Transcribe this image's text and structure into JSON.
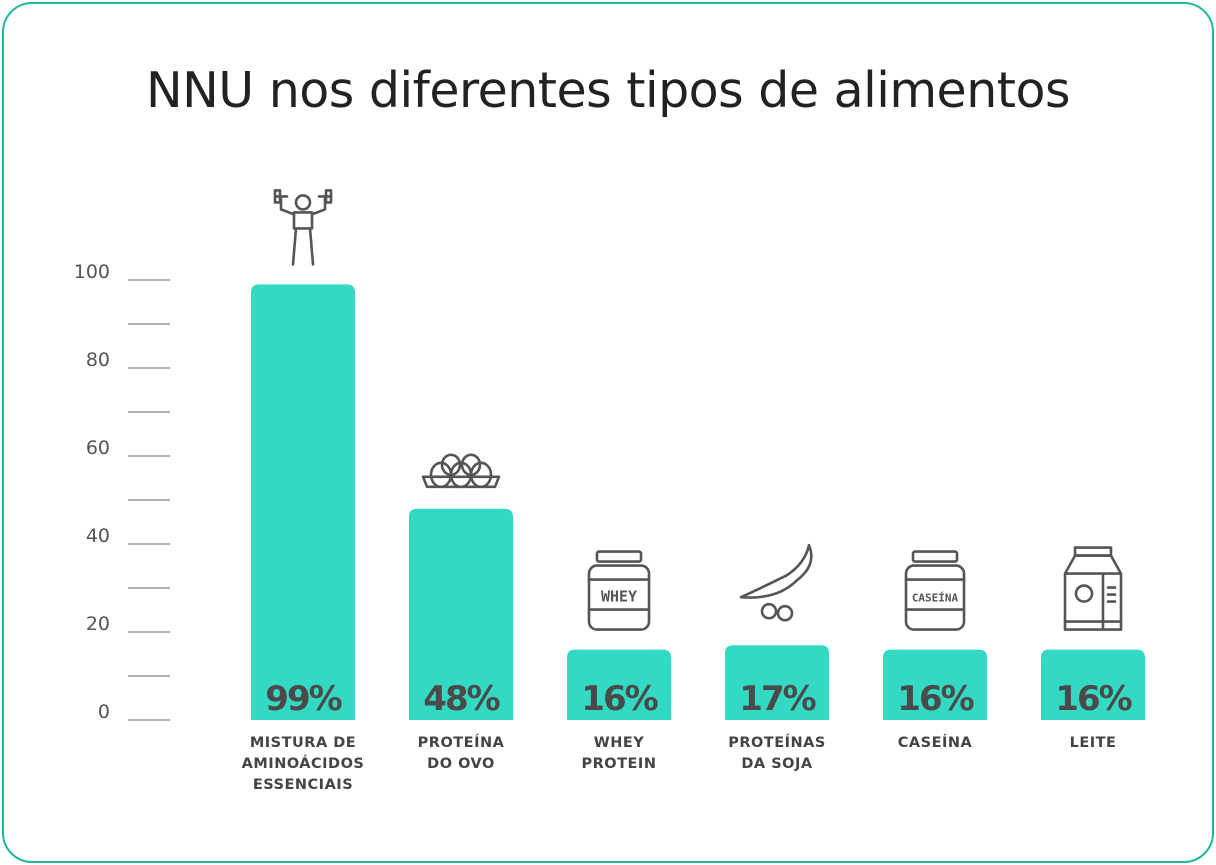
{
  "chart_data": {
    "type": "bar",
    "title": "NNU nos diferentes tipos de alimentos",
    "xlabel": "",
    "ylabel": "",
    "ylim": [
      0,
      100
    ],
    "yticks": [
      "0",
      "20",
      "40",
      "60",
      "80",
      "100"
    ],
    "categories": [
      [
        "MISTURA DE",
        "AMINOÁCIDOS",
        "ESSENCIAIS"
      ],
      [
        "PROTEÍNA",
        "DO OVO"
      ],
      [
        "WHEY",
        "PROTEIN"
      ],
      [
        "PROTEÍNAS",
        "DA SOJA"
      ],
      [
        "CASEÍNA"
      ],
      [
        "LEITE"
      ]
    ],
    "values": [
      99,
      48,
      16,
      17,
      16,
      16
    ],
    "value_labels": [
      "99%",
      "48%",
      "16%",
      "17%",
      "16%",
      "16%"
    ],
    "icons": [
      "weightlifter-icon",
      "egg-carton-icon",
      "whey-jar-icon",
      "soybean-pod-icon",
      "casein-jar-icon",
      "milk-carton-icon"
    ],
    "icon_labels": {
      "whey": "WHEY",
      "casein": "CASEÍNA"
    },
    "grid": false,
    "bar_color": "#34d9c3",
    "text_color": "#444444",
    "border_color": "#1fb79f"
  }
}
